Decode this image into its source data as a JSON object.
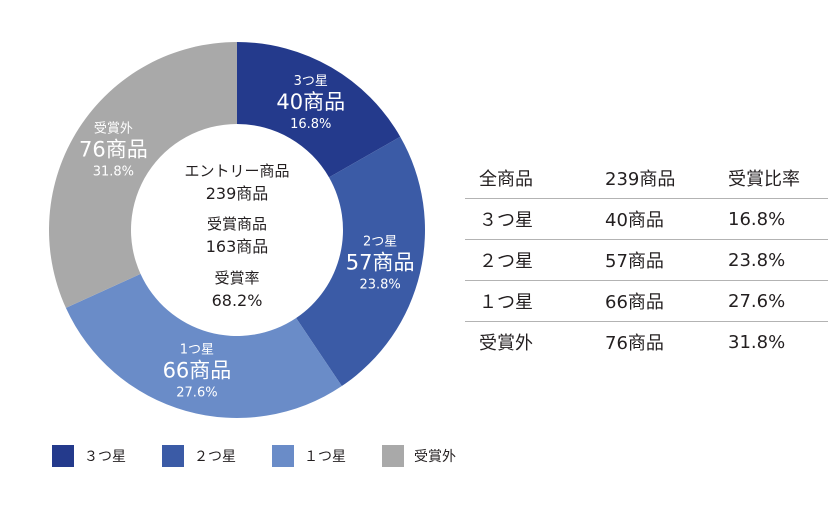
{
  "chart_data": {
    "type": "pie",
    "categories": [
      "３つ星",
      "２つ星",
      "１つ星",
      "受賞外"
    ],
    "values": [
      40,
      57,
      66,
      76
    ],
    "percents": [
      "16.8%",
      "23.8%",
      "27.6%",
      "31.8%"
    ],
    "count_labels": [
      "40商品",
      "57商品",
      "66商品",
      "76商品"
    ],
    "colors": [
      "#243a8c",
      "#3b5ba6",
      "#6a8cc8",
      "#a9a9a9"
    ],
    "slice_titles": [
      "3つ星",
      "2つ星",
      "1つ星",
      "受賞外"
    ],
    "legend_position": "bottom-left",
    "center": {
      "line1": "エントリー商品",
      "line2": "239商品",
      "line3": "受賞商品",
      "line4": "163商品",
      "line5": "受賞率",
      "line6": "68.2%"
    }
  },
  "legend": [
    {
      "label": "３つ星",
      "color": "#243a8c"
    },
    {
      "label": "２つ星",
      "color": "#3b5ba6"
    },
    {
      "label": "１つ星",
      "color": "#6a8cc8"
    },
    {
      "label": "受賞外",
      "color": "#a9a9a9"
    }
  ],
  "table": {
    "header": [
      "全商品",
      "239商品",
      "受賞比率"
    ],
    "rows": [
      [
        "３つ星",
        "40商品",
        "16.8%"
      ],
      [
        "２つ星",
        "57商品",
        "23.8%"
      ],
      [
        "１つ星",
        "66商品",
        "27.6%"
      ],
      [
        "受賞外",
        "76商品",
        "31.8%"
      ]
    ]
  }
}
